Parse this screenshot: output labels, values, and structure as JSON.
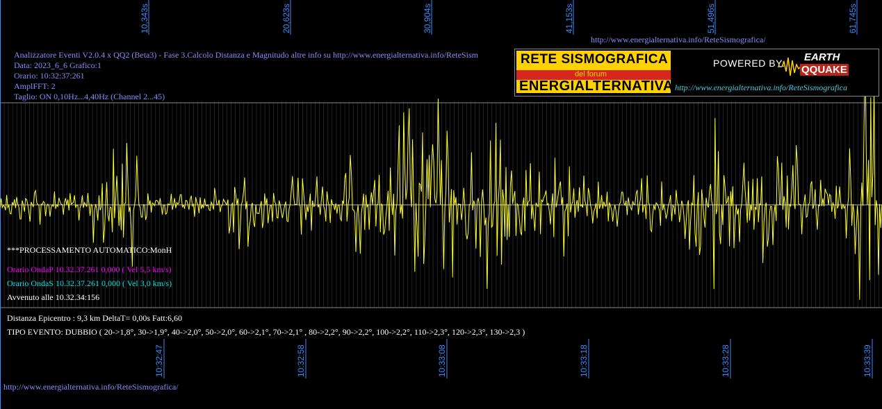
{
  "header": {
    "title": "Analizzatore Eventi V2.0.4 x QQ2 (Beta3) - Fase 3.Calcolo Distanza e Magnitudo altre info su http://www.energialternativa.info/ReteSism",
    "data": "Data: 2023_6_6 Grafico:1",
    "orario": "Orario: 10:32:37:261",
    "amplfft": "AmplFFT: 2",
    "taglio": "Taglio: ON 0,10Hz...4,40Hz        (Channel 2...45)"
  },
  "processing": {
    "auto": "***PROCESSAMENTO AUTOMATICO:MonH",
    "onda_p": "Orario OndaP 10.32.37.261  0,000 ( Vel 5,5 km/s)",
    "onda_s": "Orario OndaS 10.32.37.261  0,000 ( Vel 3,0 km/s)",
    "avvenuto": "Avvenuto alle 10.32.34:156",
    "distanza": "Distanza Epicentro : 9,3 km DeltaT= 0,00s  Fatt:6,60",
    "tipo_evento": "TIPO EVENTO: DUBBIO ( 20->1,8°, 30->1,9°, 40->2,0°, 50->2,0°, 60->2,1°, 70->2,1° , 80->2,2°, 90->2,2°, 100->2,2°, 110->2,3°, 120->2,3°, 130->2,3 )"
  },
  "urls": {
    "top": "http://www.energialternativa.info/ReteSismografica/",
    "bottom": "http://www.energialternativa.info/ReteSismografica/"
  },
  "logo": {
    "line1": "RETE SISMOGRAFICA",
    "line2": "del forum",
    "line3": "ENERGIALTERNATIVA",
    "powered": "POWERED BY:",
    "brand1": "EARTH",
    "brand2": "QQUAKE",
    "url": "http://www.energialternativa.info/ReteSismografica"
  },
  "colors": {
    "trace": "#ffff33",
    "grid": "#8c8c8c",
    "ticks": "#3a8cff"
  },
  "chart_data": {
    "type": "line",
    "top_ticks": [
      "10,343s",
      "20,623s",
      "30,904s",
      "41,153s",
      "51,496s",
      "61,745s"
    ],
    "bottom_ticks": [
      "10:32:47",
      "10:32:58",
      "10:33:08",
      "10:33:18",
      "10:33:28",
      "10:33:39"
    ],
    "grid": true
  }
}
